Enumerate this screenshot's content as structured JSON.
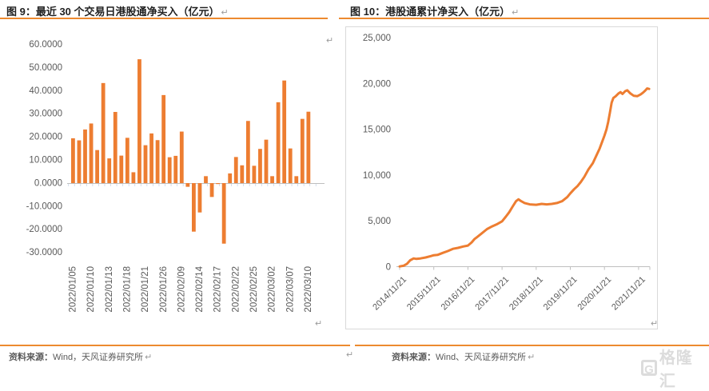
{
  "pilcrow": "↵",
  "figure9": {
    "title": "图 9：最近 30 个交易日港股通净买入（亿元）",
    "source_label": "资料来源：",
    "source": "Wind，天风证券研究所"
  },
  "figure10": {
    "title": "图 10：港股通累计净买入（亿元）",
    "source_label": "资料来源：",
    "source": "Wind、天风证券研究所"
  },
  "watermark": {
    "logo_letter": "G",
    "brand": "格隆汇"
  },
  "colors": {
    "accent_orange": "#ED7D31",
    "rule_orange": "#ED8A2F",
    "axis_text": "#595959",
    "axis_line": "#BFBFBF",
    "box_border": "#D9D9D9",
    "tick_blue": "#C9D6E8",
    "watermark_gray": "#DCDCDC"
  },
  "chart_data": [
    {
      "type": "bar",
      "title": "图 9：最近 30 个交易日港股通净买入（亿元）",
      "ylabel": "亿元",
      "ylim": [
        -30,
        60
      ],
      "ytick_labels": [
        "60.0000",
        "50.0000",
        "40.0000",
        "30.0000",
        "20.0000",
        "10.0000",
        "0.0000",
        "-10.0000",
        "-20.0000",
        "-30.0000"
      ],
      "categories": [
        "2022/01/05",
        "2022/01/10",
        "2022/01/13",
        "2022/01/18",
        "2022/01/21",
        "2022/01/26",
        "2022/02/09",
        "2022/02/14",
        "2022/02/17",
        "2022/02/22",
        "2022/02/25",
        "2022/03/02",
        "2022/03/07",
        "2022/03/10"
      ],
      "label_every_n_bars": 3,
      "values": [
        19.4,
        18.5,
        23.2,
        25.8,
        14.3,
        43.3,
        10.7,
        30.8,
        11.9,
        19.6,
        4.7,
        53.6,
        16.4,
        21.5,
        18.6,
        38.1,
        11.2,
        11.8,
        22.3,
        -1.6,
        -21.0,
        -12.7,
        3.0,
        -6.0,
        -0.4,
        -26.2,
        4.2,
        11.3,
        7.7,
        26.9,
        7.5,
        14.8,
        18.8,
        3.0,
        35.0,
        44.4,
        15.0,
        3.0,
        27.8,
        30.9
      ],
      "bar_color": "#ED7D31",
      "grid": false,
      "legend": false
    },
    {
      "type": "line",
      "title": "图 10：港股通累计净买入（亿元）",
      "ylabel": "亿元",
      "ylim": [
        0,
        25000
      ],
      "ytick_labels": [
        "25,000",
        "20,000",
        "15,000",
        "10,000",
        "5,000",
        "0"
      ],
      "xtick_labels": [
        "2014/11/21",
        "2015/11/21",
        "2016/11/21",
        "2017/11/21",
        "2018/11/21",
        "2019/11/21",
        "2020/11/21",
        "2021/11/21"
      ],
      "xtick_positions": [
        2014.89,
        2015.89,
        2016.89,
        2017.89,
        2018.89,
        2019.89,
        2020.89,
        2021.89
      ],
      "xlim": [
        2014.8,
        2022.3
      ],
      "line_color": "#ED7D31",
      "grid": false,
      "legend": false,
      "points": [
        [
          2014.89,
          30
        ],
        [
          2015.0,
          100
        ],
        [
          2015.1,
          300
        ],
        [
          2015.2,
          700
        ],
        [
          2015.3,
          900
        ],
        [
          2015.38,
          850
        ],
        [
          2015.5,
          900
        ],
        [
          2015.65,
          1000
        ],
        [
          2015.8,
          1150
        ],
        [
          2015.89,
          1250
        ],
        [
          2016.0,
          1280
        ],
        [
          2016.15,
          1500
        ],
        [
          2016.3,
          1700
        ],
        [
          2016.45,
          1950
        ],
        [
          2016.6,
          2050
        ],
        [
          2016.75,
          2200
        ],
        [
          2016.89,
          2300
        ],
        [
          2017.0,
          2650
        ],
        [
          2017.08,
          3000
        ],
        [
          2017.15,
          3200
        ],
        [
          2017.3,
          3650
        ],
        [
          2017.45,
          4100
        ],
        [
          2017.6,
          4400
        ],
        [
          2017.75,
          4650
        ],
        [
          2017.89,
          4950
        ],
        [
          2018.0,
          5450
        ],
        [
          2018.1,
          5950
        ],
        [
          2018.2,
          6550
        ],
        [
          2018.3,
          7150
        ],
        [
          2018.37,
          7350
        ],
        [
          2018.45,
          7150
        ],
        [
          2018.55,
          6950
        ],
        [
          2018.7,
          6800
        ],
        [
          2018.89,
          6750
        ],
        [
          2019.05,
          6850
        ],
        [
          2019.2,
          6800
        ],
        [
          2019.35,
          6850
        ],
        [
          2019.5,
          6950
        ],
        [
          2019.65,
          7150
        ],
        [
          2019.8,
          7600
        ],
        [
          2019.89,
          8000
        ],
        [
          2020.0,
          8450
        ],
        [
          2020.1,
          8800
        ],
        [
          2020.2,
          9250
        ],
        [
          2020.3,
          9800
        ],
        [
          2020.42,
          10600
        ],
        [
          2020.55,
          11300
        ],
        [
          2020.65,
          12100
        ],
        [
          2020.75,
          12900
        ],
        [
          2020.85,
          13900
        ],
        [
          2020.89,
          14300
        ],
        [
          2020.95,
          15000
        ],
        [
          2021.0,
          15800
        ],
        [
          2021.05,
          16800
        ],
        [
          2021.1,
          17900
        ],
        [
          2021.15,
          18400
        ],
        [
          2021.22,
          18600
        ],
        [
          2021.3,
          18900
        ],
        [
          2021.36,
          19050
        ],
        [
          2021.42,
          18850
        ],
        [
          2021.5,
          19150
        ],
        [
          2021.56,
          19250
        ],
        [
          2021.65,
          18900
        ],
        [
          2021.75,
          18650
        ],
        [
          2021.85,
          18600
        ],
        [
          2021.95,
          18800
        ],
        [
          2022.02,
          19000
        ],
        [
          2022.08,
          19200
        ],
        [
          2022.14,
          19450
        ],
        [
          2022.2,
          19400
        ]
      ]
    }
  ]
}
